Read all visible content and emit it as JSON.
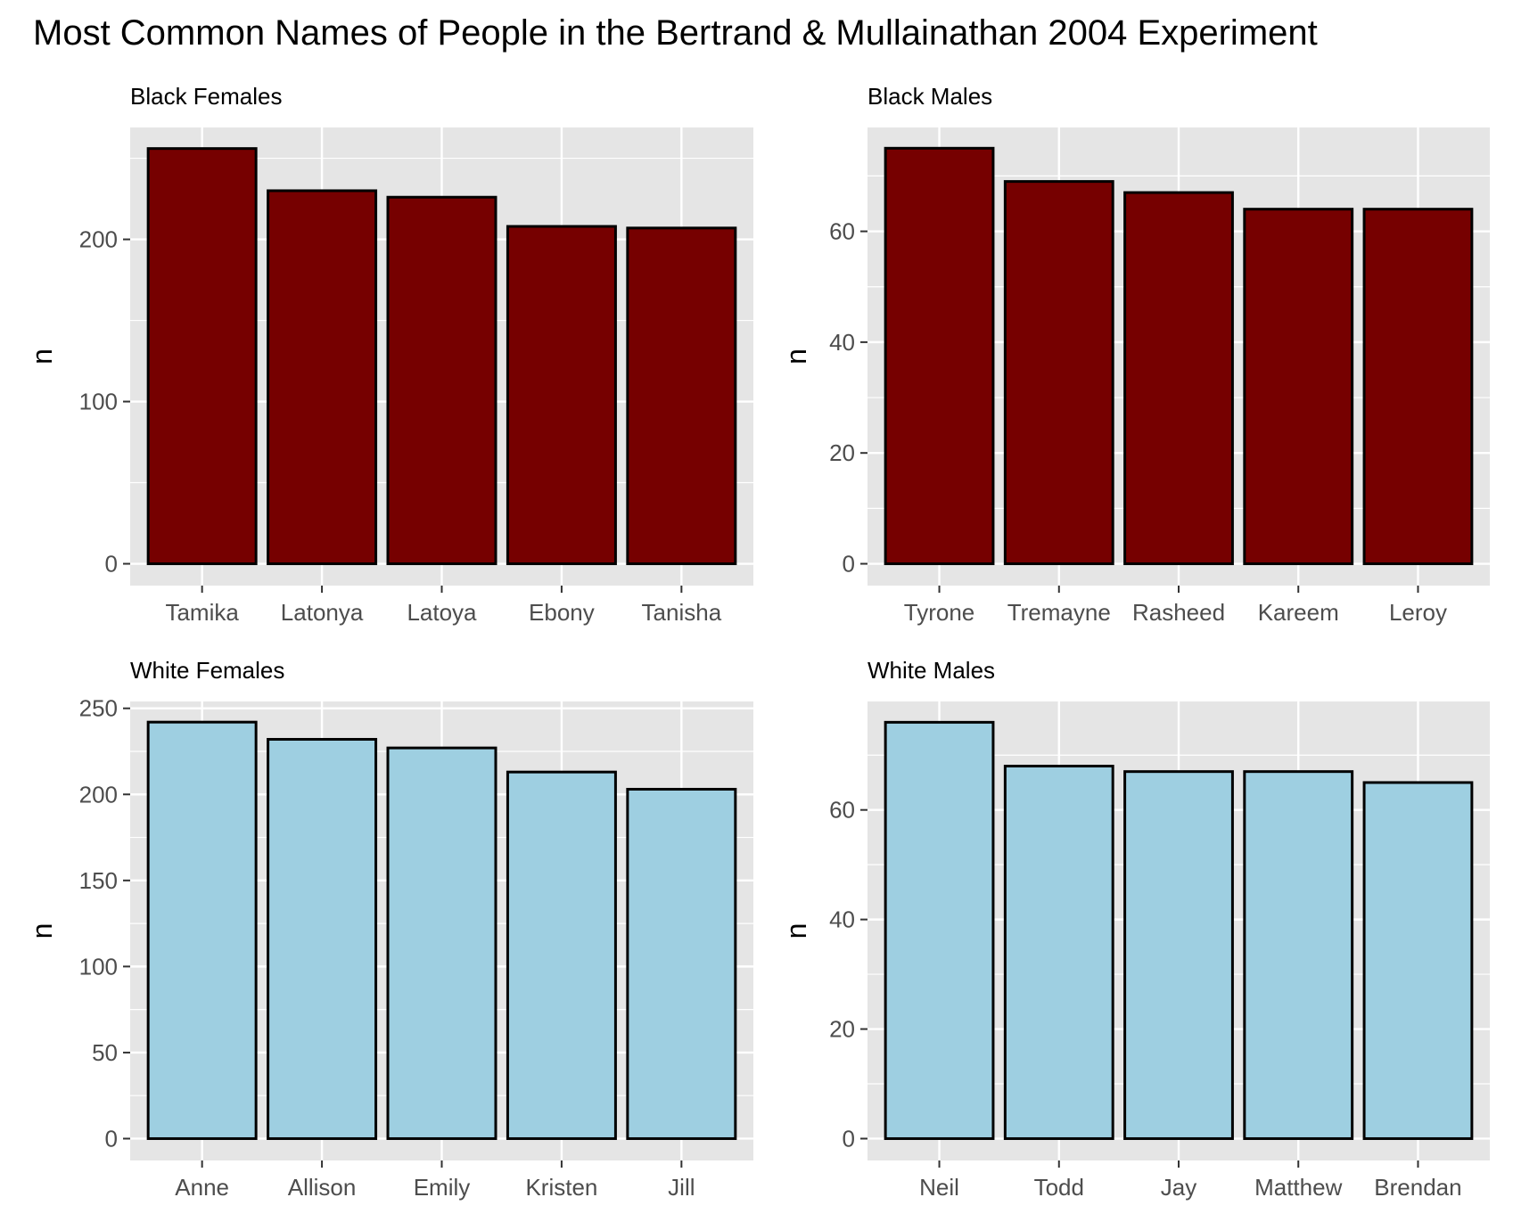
{
  "title": "Most Common Names of People in the Bertrand & Mullainathan 2004 Experiment",
  "colors": {
    "black_fill": "#760000",
    "white_fill": "#9ECFE1",
    "panel_bg": "#E5E5E5",
    "grid": "#FFFFFF",
    "bar_stroke": "#000000",
    "tick_text": "#4D4D4D"
  },
  "chart_data": [
    {
      "type": "bar",
      "title": "Black Females",
      "xlabel": "",
      "ylabel": "n",
      "categories": [
        "Tamika",
        "Latonya",
        "Latoya",
        "Ebony",
        "Tanisha"
      ],
      "values": [
        256,
        230,
        226,
        208,
        207
      ],
      "ylim": [
        0,
        269
      ],
      "yticks": [
        0,
        100,
        200
      ],
      "ytick_labels": [
        "0",
        "100",
        "200"
      ],
      "fill": "#760000",
      "grid": true
    },
    {
      "type": "bar",
      "title": "Black Males",
      "xlabel": "",
      "ylabel": "n",
      "categories": [
        "Tyrone",
        "Tremayne",
        "Rasheed",
        "Kareem",
        "Leroy"
      ],
      "values": [
        75,
        69,
        67,
        64,
        64
      ],
      "ylim": [
        0,
        78.75
      ],
      "yticks": [
        0,
        20,
        40,
        60
      ],
      "ytick_labels": [
        "0",
        "20",
        "40",
        "60"
      ],
      "fill": "#760000",
      "grid": true
    },
    {
      "type": "bar",
      "title": "White Females",
      "xlabel": "",
      "ylabel": "n",
      "categories": [
        "Anne",
        "Allison",
        "Emily",
        "Kristen",
        "Jill"
      ],
      "values": [
        242,
        232,
        227,
        213,
        203
      ],
      "ylim": [
        0,
        254
      ],
      "yticks": [
        0,
        50,
        100,
        150,
        200,
        250
      ],
      "ytick_labels": [
        "0",
        "50",
        "100",
        "150",
        "200",
        "250"
      ],
      "fill": "#9ECFE1",
      "grid": true
    },
    {
      "type": "bar",
      "title": "White Males",
      "xlabel": "",
      "ylabel": "n",
      "categories": [
        "Neil",
        "Todd",
        "Jay",
        "Matthew",
        "Brendan"
      ],
      "values": [
        76,
        68,
        67,
        67,
        65
      ],
      "ylim": [
        0,
        79.8
      ],
      "yticks": [
        0,
        20,
        40,
        60
      ],
      "ytick_labels": [
        "0",
        "20",
        "40",
        "60"
      ],
      "fill": "#9ECFE1",
      "grid": true
    }
  ]
}
